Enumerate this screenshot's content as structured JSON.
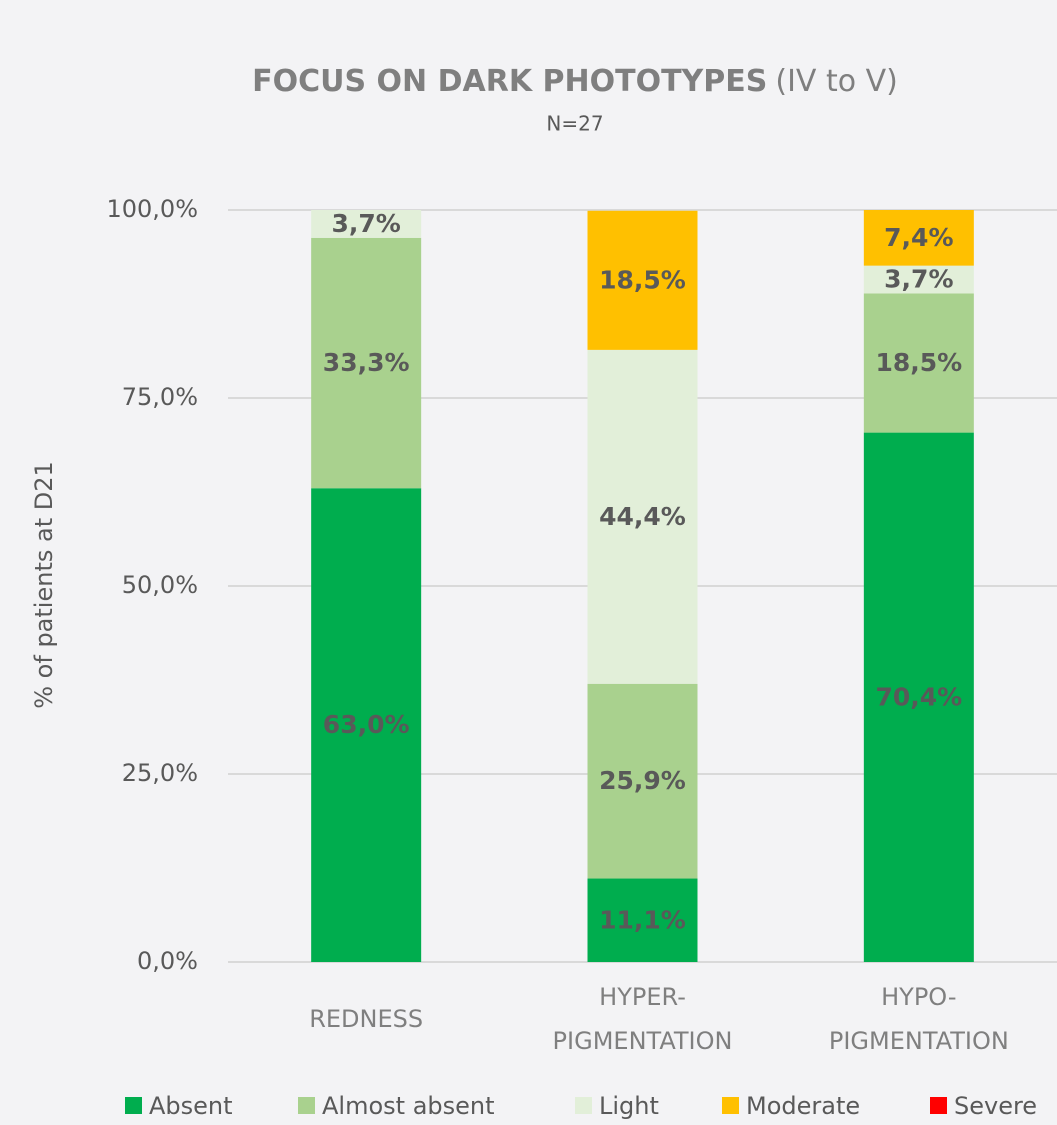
{
  "chart_data": {
    "type": "stacked_bar",
    "title": "FOCUS ON DARK PHOTOTYPES",
    "title_suffix": "(IV to V)",
    "subtitle": "N=27",
    "y_label": "% of patients at D21",
    "categories": [
      "REDNESS",
      "HYPER-PIGMENTATION",
      "HYPO-PIGMENTATION"
    ],
    "series": [
      {
        "name": "Absent",
        "color": "#00ad4e",
        "label_color": "#ffffff",
        "values": [
          63.0,
          11.1,
          70.4
        ],
        "value_labels": [
          "63,0%",
          "11,1%",
          "70,4%"
        ]
      },
      {
        "name": "Almost absent",
        "color": "#a9d18e",
        "label_color": "#ffffff",
        "values": [
          33.3,
          25.9,
          18.5
        ],
        "value_labels": [
          "33,3%",
          "25,9%",
          "18,5%"
        ]
      },
      {
        "name": "Light",
        "color": "#e2efd9",
        "label_color": "#333333",
        "values": [
          3.7,
          44.4,
          3.7
        ],
        "value_labels": [
          "3,7%",
          "44,4%",
          "3,7%"
        ]
      },
      {
        "name": "Moderate",
        "color": "#ffc000",
        "label_color": "#333333",
        "values": [
          0,
          18.5,
          7.4
        ],
        "value_labels": [
          null,
          "18,5%",
          "7,4%"
        ]
      },
      {
        "name": "Severe",
        "color": "#ff0000",
        "label_color": "#333333",
        "values": [
          0,
          0,
          0
        ],
        "value_labels": [
          null,
          null,
          null
        ]
      }
    ],
    "ylim": [
      0,
      100
    ],
    "yticks": [
      {
        "value": 0,
        "label": "0,0%"
      },
      {
        "value": 25,
        "label": "25,0%"
      },
      {
        "value": 50,
        "label": "50,0%"
      },
      {
        "value": 75,
        "label": "75,0%"
      },
      {
        "value": 100,
        "label": "100,0%"
      }
    ],
    "grid": true,
    "legend": "bottom"
  }
}
